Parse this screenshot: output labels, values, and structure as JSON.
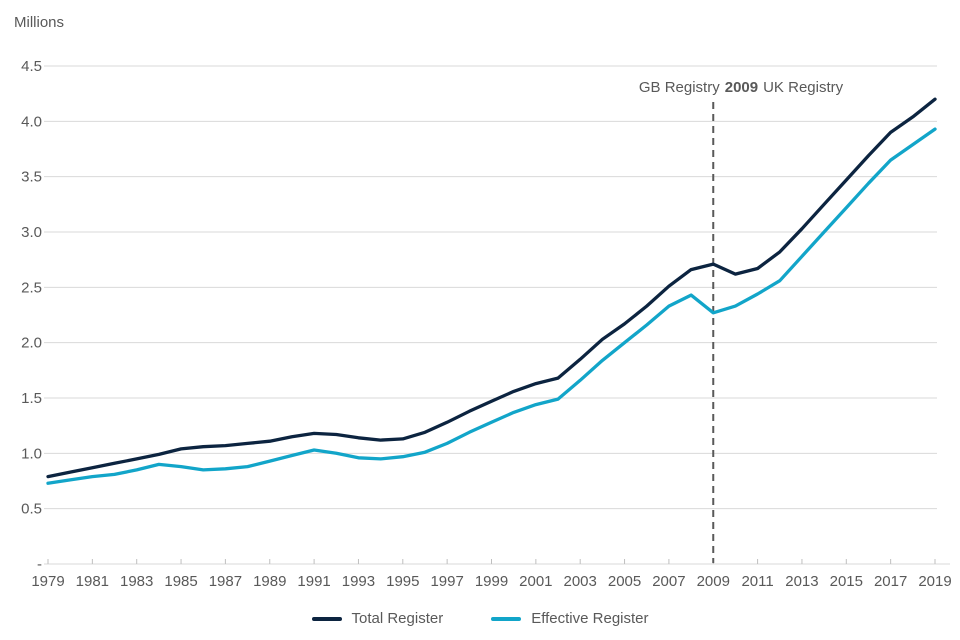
{
  "chart": {
    "units_label": "Millions"
  },
  "chart_data": {
    "type": "line",
    "title": "",
    "ylabel": "Millions",
    "xlabel": "",
    "ylim": [
      0,
      4.5
    ],
    "y_ticks": [
      4.5,
      4.0,
      3.5,
      3.0,
      2.5,
      2.0,
      1.5,
      1.0,
      0.5
    ],
    "zero_tick_label": "-",
    "grid": true,
    "legend_position": "bottom",
    "x": [
      1979,
      1980,
      1981,
      1982,
      1983,
      1984,
      1985,
      1986,
      1987,
      1988,
      1989,
      1990,
      1991,
      1992,
      1993,
      1994,
      1995,
      1996,
      1997,
      1998,
      1999,
      2000,
      2001,
      2002,
      2003,
      2004,
      2005,
      2006,
      2007,
      2008,
      2009,
      2010,
      2011,
      2012,
      2013,
      2014,
      2015,
      2016,
      2017,
      2018,
      2019
    ],
    "x_tick_labels": [
      1979,
      1981,
      1983,
      1985,
      1987,
      1989,
      1991,
      1993,
      1995,
      1997,
      1999,
      2001,
      2003,
      2005,
      2007,
      2009,
      2011,
      2013,
      2015,
      2017,
      2019
    ],
    "series": [
      {
        "name": "Total Register",
        "color": "#0c2440",
        "values": [
          0.79,
          0.83,
          0.87,
          0.91,
          0.95,
          0.99,
          1.04,
          1.06,
          1.07,
          1.09,
          1.11,
          1.15,
          1.18,
          1.17,
          1.14,
          1.12,
          1.13,
          1.19,
          1.28,
          1.38,
          1.47,
          1.56,
          1.63,
          1.68,
          1.85,
          2.03,
          2.17,
          2.33,
          2.51,
          2.66,
          2.71,
          2.62,
          2.67,
          2.82,
          3.03,
          3.25,
          3.47,
          3.69,
          3.9,
          4.04,
          4.2
        ]
      },
      {
        "name": "Effective Register",
        "color": "#12a5c9",
        "values": [
          0.73,
          0.76,
          0.79,
          0.81,
          0.85,
          0.9,
          0.88,
          0.85,
          0.86,
          0.88,
          0.93,
          0.98,
          1.03,
          1.0,
          0.96,
          0.95,
          0.97,
          1.01,
          1.09,
          1.19,
          1.28,
          1.37,
          1.44,
          1.49,
          1.66,
          1.84,
          2.0,
          2.16,
          2.33,
          2.43,
          2.27,
          2.33,
          2.44,
          2.56,
          2.78,
          3.0,
          3.22,
          3.44,
          3.65,
          3.79,
          3.93
        ]
      }
    ],
    "divider": {
      "x": 2009,
      "style": "dashed",
      "label_pre": "GB Registry",
      "label_bold": "2009",
      "label_post": "UK Registry"
    },
    "colors": {
      "grid": "#d9d9d9",
      "axis": "#d9d9d9",
      "tick": "#bfbfbf",
      "text": "#595959",
      "divider": "#595959",
      "background": "#ffffff"
    }
  }
}
